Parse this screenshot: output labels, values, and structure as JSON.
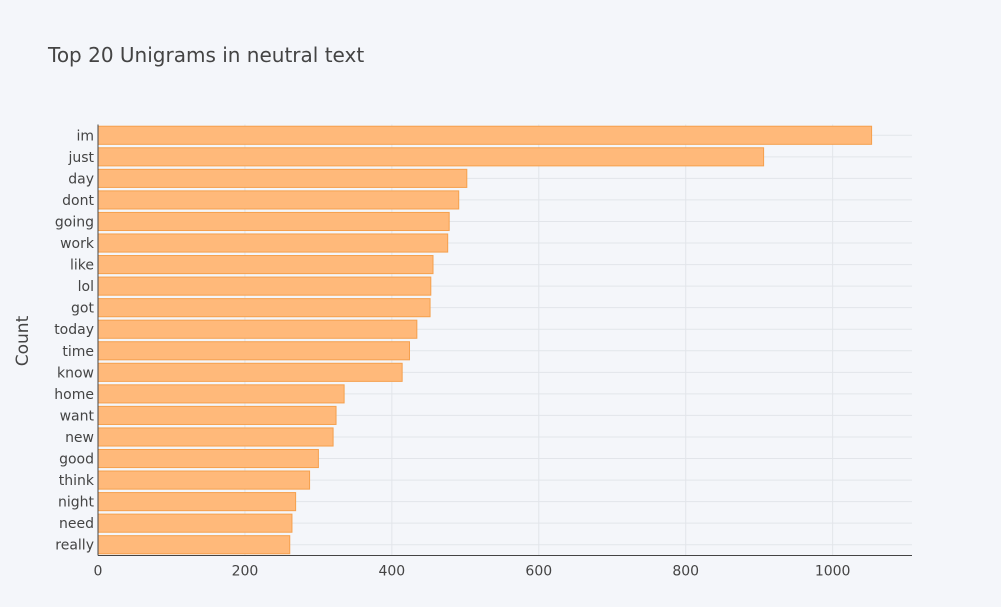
{
  "chart_data": {
    "type": "bar",
    "orientation": "horizontal",
    "title": "Top 20 Unigrams in neutral text",
    "xlabel": "",
    "ylabel": "Count",
    "categories": [
      "im",
      "just",
      "day",
      "dont",
      "going",
      "work",
      "like",
      "lol",
      "got",
      "today",
      "time",
      "know",
      "home",
      "want",
      "new",
      "good",
      "think",
      "night",
      "need",
      "really"
    ],
    "values": [
      1053,
      906,
      502,
      491,
      478,
      476,
      456,
      453,
      452,
      434,
      424,
      414,
      335,
      324,
      320,
      300,
      288,
      269,
      264,
      261
    ],
    "xlim": [
      0,
      1108
    ],
    "xticks": [
      0,
      200,
      400,
      600,
      800,
      1000
    ],
    "grid": true,
    "legend": "none",
    "colors": {
      "bar_fill": "#ffb97a",
      "bar_stroke": "#f5a04d",
      "grid": "#e2e5ea",
      "axis": "#444444",
      "background": "#f4f6fa"
    }
  }
}
